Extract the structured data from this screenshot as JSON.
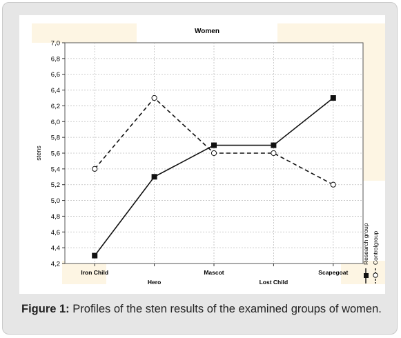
{
  "chart_data": {
    "type": "line",
    "title": "Women",
    "ylabel": "stens",
    "xlabel": "",
    "ylim": [
      4.2,
      7.0
    ],
    "ytick_step": 0.2,
    "grid": true,
    "categories": [
      "Iron Child",
      "Hero",
      "Mascot",
      "Lost Child",
      "Scapegoat"
    ],
    "series": [
      {
        "name": "Research group",
        "values": [
          4.3,
          5.3,
          5.7,
          5.7,
          6.3
        ],
        "style": "solid",
        "marker": "filled-square",
        "color": "#111111"
      },
      {
        "name": "Controlgroup",
        "values": [
          5.4,
          6.3,
          5.6,
          5.6,
          5.2
        ],
        "style": "dashed",
        "marker": "open-circle",
        "color": "#111111"
      }
    ],
    "legend_position": "right-bottom, rotated"
  },
  "caption": {
    "label": "Figure 1:",
    "text": " Profiles of the sten results of the examined groups of women."
  }
}
